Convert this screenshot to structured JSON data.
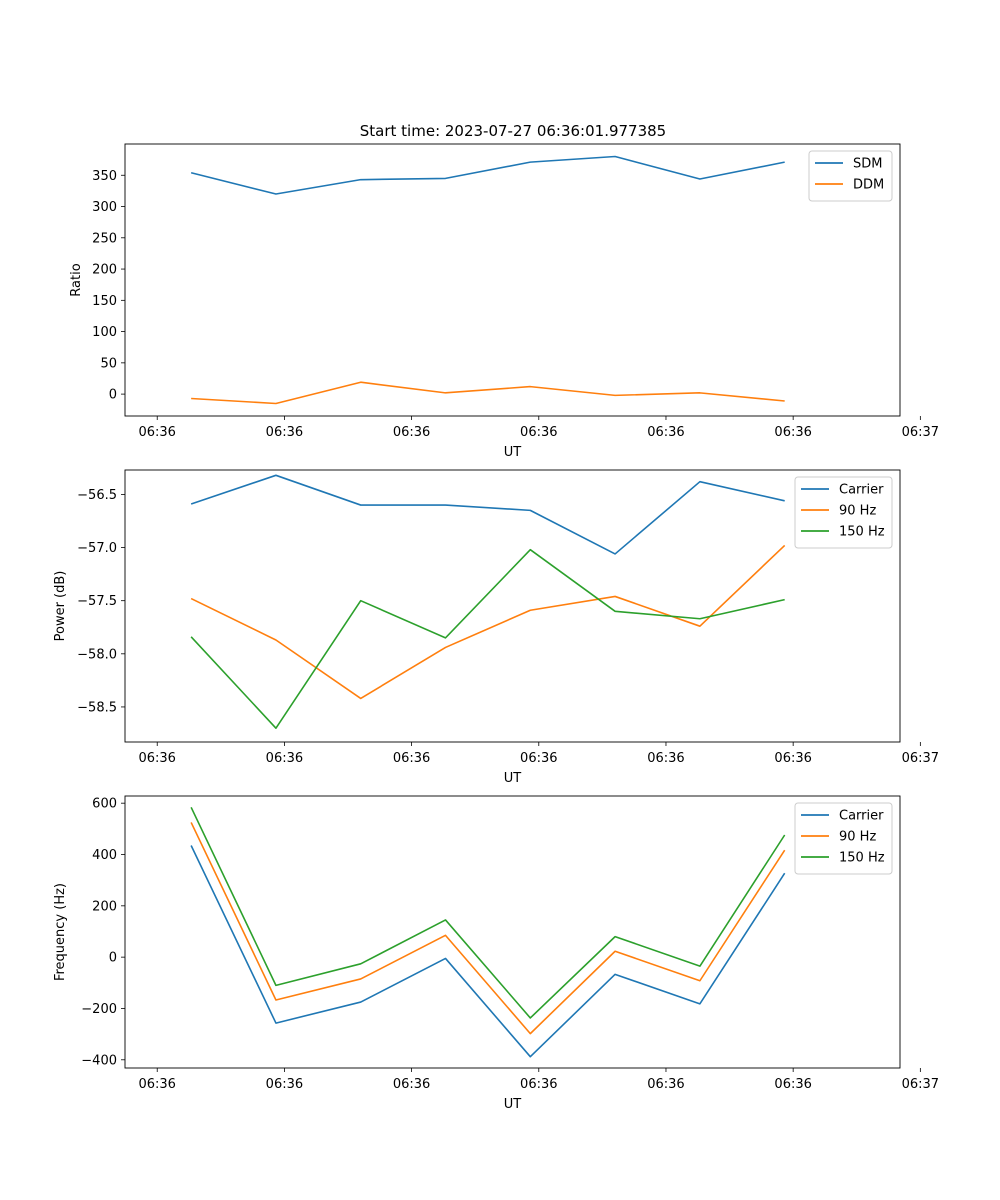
{
  "title": "Start time: 2023-07-27 06:36:01.977385",
  "colors": {
    "blue": "#1f77b4",
    "orange": "#ff7f0e",
    "green": "#2ca02c"
  },
  "chart_data": [
    {
      "type": "line",
      "xlabel": "UT",
      "ylabel": "Ratio",
      "x": [
        1,
        2,
        3,
        4,
        5,
        6,
        7,
        8
      ],
      "xlim": [
        0.22,
        9.36
      ],
      "x_ticks": [
        0.6,
        2.1,
        3.6,
        5.1,
        6.6,
        8.1,
        9.6
      ],
      "x_tick_labels": [
        "06:36",
        "06:36",
        "06:36",
        "06:36",
        "06:36",
        "06:36",
        "06:37"
      ],
      "ylim": [
        -35,
        400
      ],
      "y_ticks": [
        0,
        50,
        100,
        150,
        200,
        250,
        300,
        350
      ],
      "legend_position": "top-right",
      "series": [
        {
          "name": "SDM",
          "color": "#1f77b4",
          "values": [
            354,
            320,
            343,
            345,
            371,
            380,
            344,
            371
          ]
        },
        {
          "name": "DDM",
          "color": "#ff7f0e",
          "values": [
            -7,
            -15,
            19,
            2,
            12,
            -2,
            2,
            -11
          ]
        }
      ]
    },
    {
      "type": "line",
      "xlabel": "UT",
      "ylabel": "Power (dB)",
      "x": [
        1,
        2,
        3,
        4,
        5,
        6,
        7,
        8
      ],
      "xlim": [
        0.22,
        9.36
      ],
      "x_ticks": [
        0.6,
        2.1,
        3.6,
        5.1,
        6.6,
        8.1,
        9.6
      ],
      "x_tick_labels": [
        "06:36",
        "06:36",
        "06:36",
        "06:36",
        "06:36",
        "06:36",
        "06:37"
      ],
      "ylim": [
        -58.83,
        -56.27
      ],
      "y_ticks": [
        -58.5,
        -58.0,
        -57.5,
        -57.0,
        -56.5
      ],
      "y_tick_labels": [
        "−58.5",
        "−58.0",
        "−57.5",
        "−57.0",
        "−56.5"
      ],
      "legend_position": "top-right",
      "series": [
        {
          "name": "Carrier",
          "color": "#1f77b4",
          "values": [
            -56.59,
            -56.32,
            -56.6,
            -56.6,
            -56.65,
            -57.06,
            -56.38,
            -56.56
          ]
        },
        {
          "name": "90 Hz",
          "color": "#ff7f0e",
          "values": [
            -57.48,
            -57.87,
            -58.42,
            -57.94,
            -57.59,
            -57.46,
            -57.74,
            -56.98
          ]
        },
        {
          "name": "150 Hz",
          "color": "#2ca02c",
          "values": [
            -57.84,
            -58.7,
            -57.5,
            -57.85,
            -57.02,
            -57.6,
            -57.67,
            -57.49
          ]
        }
      ]
    },
    {
      "type": "line",
      "xlabel": "UT",
      "ylabel": "Frequency (Hz)",
      "x": [
        1,
        2,
        3,
        4,
        5,
        6,
        7,
        8
      ],
      "xlim": [
        0.22,
        9.36
      ],
      "x_ticks": [
        0.6,
        2.1,
        3.6,
        5.1,
        6.6,
        8.1,
        9.6
      ],
      "x_tick_labels": [
        "06:36",
        "06:36",
        "06:36",
        "06:36",
        "06:36",
        "06:36",
        "06:37"
      ],
      "ylim": [
        -432,
        628
      ],
      "y_ticks": [
        -400,
        -200,
        0,
        200,
        400,
        600
      ],
      "y_tick_labels": [
        "−400",
        "−200",
        "0",
        "200",
        "400",
        "600"
      ],
      "legend_position": "top-right",
      "series": [
        {
          "name": "Carrier",
          "color": "#1f77b4",
          "values": [
            435,
            -257,
            -175,
            -5,
            -388,
            -67,
            -182,
            327
          ]
        },
        {
          "name": "90 Hz",
          "color": "#ff7f0e",
          "values": [
            525,
            -167,
            -85,
            85,
            -298,
            23,
            -92,
            417
          ]
        },
        {
          "name": "150 Hz",
          "color": "#2ca02c",
          "values": [
            584,
            -110,
            -26,
            145,
            -237,
            80,
            -35,
            476
          ]
        }
      ]
    }
  ]
}
